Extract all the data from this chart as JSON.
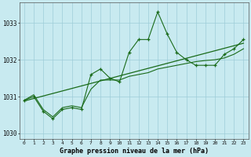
{
  "title": "Graphe pression niveau de la mer (hPa)",
  "background_color": "#c8eaf0",
  "line_color": "#1a6b1a",
  "grid_color": "#9dccd8",
  "xlim": [
    -0.5,
    23.5
  ],
  "ylim": [
    1029.85,
    1033.55
  ],
  "yticks": [
    1030,
    1031,
    1032,
    1033
  ],
  "xticks": [
    0,
    1,
    2,
    3,
    4,
    5,
    6,
    7,
    8,
    9,
    10,
    11,
    12,
    13,
    14,
    15,
    16,
    17,
    18,
    19,
    20,
    21,
    22,
    23
  ],
  "series_jagged": [
    1030.9,
    1031.0,
    1030.6,
    1030.4,
    1030.65,
    1030.7,
    1030.65,
    1031.6,
    1031.75,
    1031.5,
    1031.4,
    1032.2,
    1032.55,
    1032.55,
    1033.3,
    1032.7,
    1032.2,
    1032.0,
    1031.85,
    1031.85,
    1031.85,
    1032.15,
    1032.3,
    1032.55
  ],
  "series_smooth": [
    1030.9,
    1031.05,
    1030.65,
    1030.45,
    1030.7,
    1030.75,
    1030.7,
    1031.2,
    1031.45,
    1031.45,
    1031.45,
    1031.55,
    1031.6,
    1031.65,
    1031.75,
    1031.8,
    1031.85,
    1031.9,
    1031.95,
    1031.98,
    1032.0,
    1032.05,
    1032.15,
    1032.3
  ],
  "trend": [
    1030.88,
    1032.45
  ]
}
